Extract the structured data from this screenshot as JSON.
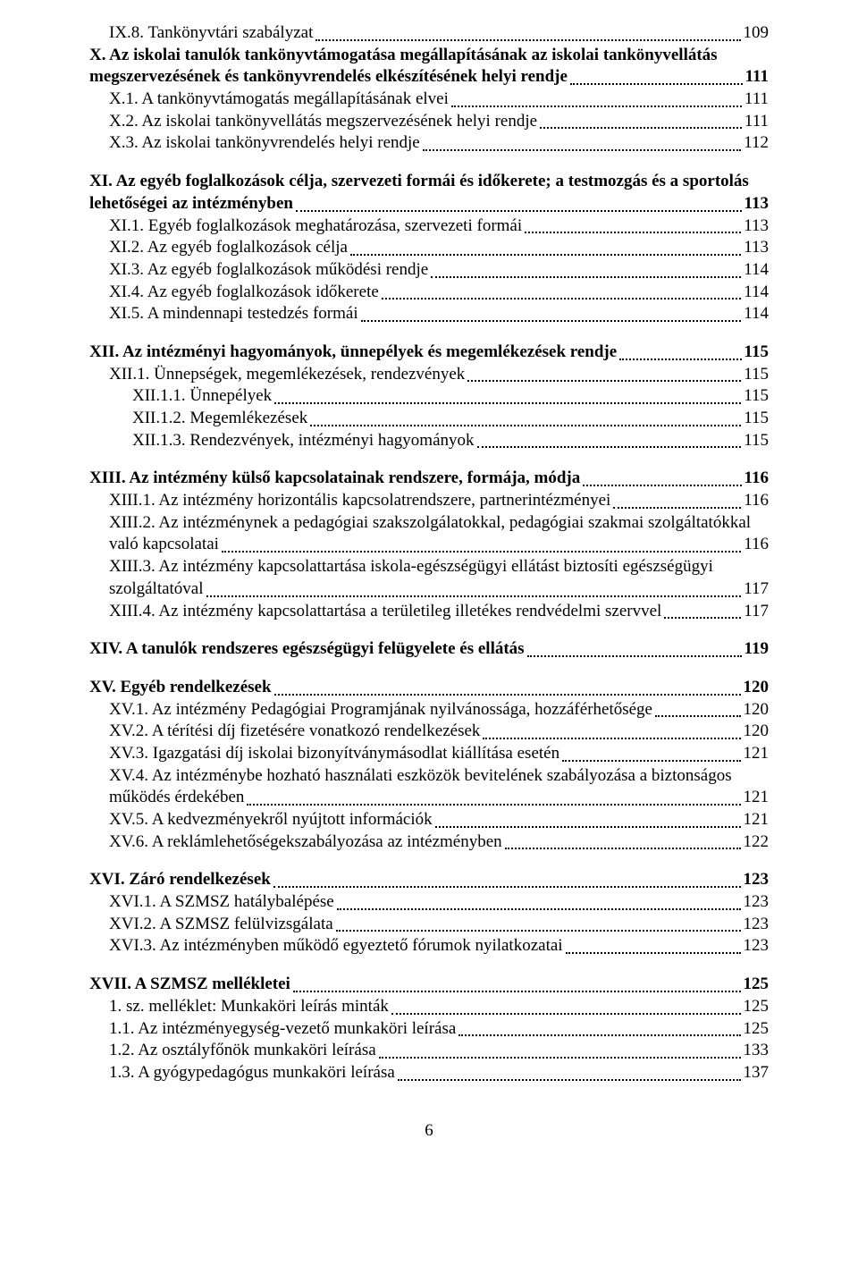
{
  "blocks": [
    {
      "entries": [
        {
          "indent": 1,
          "bold": false,
          "multi": false,
          "label": "IX.8. Tankönyvtári szabályzat",
          "page": "109"
        },
        {
          "indent": 0,
          "bold": true,
          "multi": true,
          "top": "X. Az iskolai tanulók tankönyvtámogatása megállapításának az iskolai tankönyvellátás",
          "last": "megszervezésének és tankönyvrendelés elkészítésének helyi rendje",
          "page": "111"
        },
        {
          "indent": 1,
          "bold": false,
          "multi": false,
          "label": "X.1. A tankönyvtámogatás megállapításának elvei",
          "page": "111"
        },
        {
          "indent": 1,
          "bold": false,
          "multi": false,
          "label": "X.2. Az iskolai tankönyvellátás megszervezésének helyi rendje",
          "page": "111"
        },
        {
          "indent": 1,
          "bold": false,
          "multi": false,
          "label": "X.3. Az iskolai tankönyvrendelés helyi rendje",
          "page": "112"
        }
      ]
    },
    {
      "entries": [
        {
          "indent": 0,
          "bold": true,
          "multi": true,
          "top": "XI. Az egyéb foglalkozások célja, szervezeti formái és időkerete; a testmozgás és a sportolás",
          "last": "lehetőségei az intézményben",
          "page": "113"
        },
        {
          "indent": 1,
          "bold": false,
          "multi": false,
          "label": "XI.1. Egyéb foglalkozások meghatározása, szervezeti formái",
          "page": "113"
        },
        {
          "indent": 1,
          "bold": false,
          "multi": false,
          "label": "XI.2. Az egyéb foglalkozások célja",
          "page": "113"
        },
        {
          "indent": 1,
          "bold": false,
          "multi": false,
          "label": "XI.3. Az egyéb foglalkozások működési rendje",
          "page": "114"
        },
        {
          "indent": 1,
          "bold": false,
          "multi": false,
          "label": "XI.4. Az egyéb foglalkozások időkerete",
          "page": "114"
        },
        {
          "indent": 1,
          "bold": false,
          "multi": false,
          "label": "XI.5. A mindennapi testedzés formái",
          "page": "114"
        }
      ]
    },
    {
      "entries": [
        {
          "indent": 0,
          "bold": true,
          "multi": false,
          "label": "XII. Az intézményi hagyományok, ünnepélyek és megemlékezések rendje",
          "page": "115"
        },
        {
          "indent": 1,
          "bold": false,
          "multi": false,
          "label": "XII.1. Ünnepségek, megemlékezések, rendezvények",
          "page": "115"
        },
        {
          "indent": 2,
          "bold": false,
          "multi": false,
          "label": "XII.1.1. Ünnepélyek",
          "page": "115"
        },
        {
          "indent": 2,
          "bold": false,
          "multi": false,
          "label": "XII.1.2. Megemlékezések",
          "page": "115"
        },
        {
          "indent": 2,
          "bold": false,
          "multi": false,
          "label": "XII.1.3. Rendezvények, intézményi hagyományok",
          "page": "115"
        }
      ]
    },
    {
      "entries": [
        {
          "indent": 0,
          "bold": true,
          "multi": false,
          "label": "XIII. Az intézmény külső kapcsolatainak rendszere, formája, módja",
          "page": "116"
        },
        {
          "indent": 1,
          "bold": false,
          "multi": false,
          "label": "XIII.1. Az intézmény horizontális kapcsolatrendszere, partnerintézményei",
          "page": "116"
        },
        {
          "indent": 1,
          "bold": false,
          "multi": true,
          "top": "XIII.2. Az intézménynek a pedagógiai szakszolgálatokkal, pedagógiai szakmai szolgáltatókkal",
          "last": "való kapcsolatai",
          "page": "116"
        },
        {
          "indent": 1,
          "bold": false,
          "multi": true,
          "top": "XIII.3. Az intézmény kapcsolattartása iskola-egészségügyi ellátást biztosíti egészségügyi",
          "last": "szolgáltatóval",
          "page": "117"
        },
        {
          "indent": 1,
          "bold": false,
          "multi": false,
          "label": "XIII.4. Az intézmény kapcsolattartása a területileg illetékes rendvédelmi szervvel",
          "page": "117"
        }
      ]
    },
    {
      "entries": [
        {
          "indent": 0,
          "bold": true,
          "multi": false,
          "label": "XIV. A tanulók rendszeres egészségügyi felügyelete és ellátás",
          "page": "119"
        }
      ]
    },
    {
      "entries": [
        {
          "indent": 0,
          "bold": true,
          "multi": false,
          "label": "XV. Egyéb rendelkezések",
          "page": "120"
        },
        {
          "indent": 1,
          "bold": false,
          "multi": false,
          "label": "XV.1. Az intézmény Pedagógiai Programjának nyilvánossága, hozzáférhetősége",
          "page": "120"
        },
        {
          "indent": 1,
          "bold": false,
          "multi": false,
          "label": "XV.2. A térítési díj fizetésére vonatkozó rendelkezések",
          "page": "120"
        },
        {
          "indent": 1,
          "bold": false,
          "multi": false,
          "label": "XV.3. Igazgatási díj iskolai bizonyítványmásodlat kiállítása esetén",
          "page": "121"
        },
        {
          "indent": 1,
          "bold": false,
          "multi": true,
          "top": "XV.4. Az intézménybe hozható használati eszközök bevitelének szabályozása a biztonságos",
          "last": "működés érdekében",
          "page": "121"
        },
        {
          "indent": 1,
          "bold": false,
          "multi": false,
          "label": "XV.5. A kedvezményekről nyújtott információk",
          "page": "121"
        },
        {
          "indent": 1,
          "bold": false,
          "multi": false,
          "label": "XV.6. A reklámlehetőségekszabályozása az intézményben",
          "page": "122"
        }
      ]
    },
    {
      "entries": [
        {
          "indent": 0,
          "bold": true,
          "multi": false,
          "label": "XVI. Záró rendelkezések",
          "page": "123"
        },
        {
          "indent": 1,
          "bold": false,
          "multi": false,
          "label": "XVI.1. A SZMSZ hatálybalépése",
          "page": "123"
        },
        {
          "indent": 1,
          "bold": false,
          "multi": false,
          "label": "XVI.2. A SZMSZ felülvizsgálata",
          "page": "123"
        },
        {
          "indent": 1,
          "bold": false,
          "multi": false,
          "label": "XVI.3. Az intézményben működő egyeztető fórumok nyilatkozatai",
          "page": "123"
        }
      ]
    },
    {
      "entries": [
        {
          "indent": 0,
          "bold": true,
          "multi": false,
          "label": "XVII. A SZMSZ mellékletei",
          "page": "125"
        },
        {
          "indent": 1,
          "bold": false,
          "multi": false,
          "label": "1. sz. melléklet: Munkaköri leírás minták",
          "page": "125"
        },
        {
          "indent": 1,
          "bold": false,
          "multi": false,
          "label": "1.1. Az intézményegység-vezető munkaköri leírása",
          "page": "125"
        },
        {
          "indent": 1,
          "bold": false,
          "multi": false,
          "label": "1.2. Az osztályfőnök munkaköri leírása",
          "page": "133"
        },
        {
          "indent": 1,
          "bold": false,
          "multi": false,
          "label": "1.3. A gyógypedagógus munkaköri leírása",
          "page": "137"
        }
      ]
    }
  ],
  "footer_page": "6"
}
